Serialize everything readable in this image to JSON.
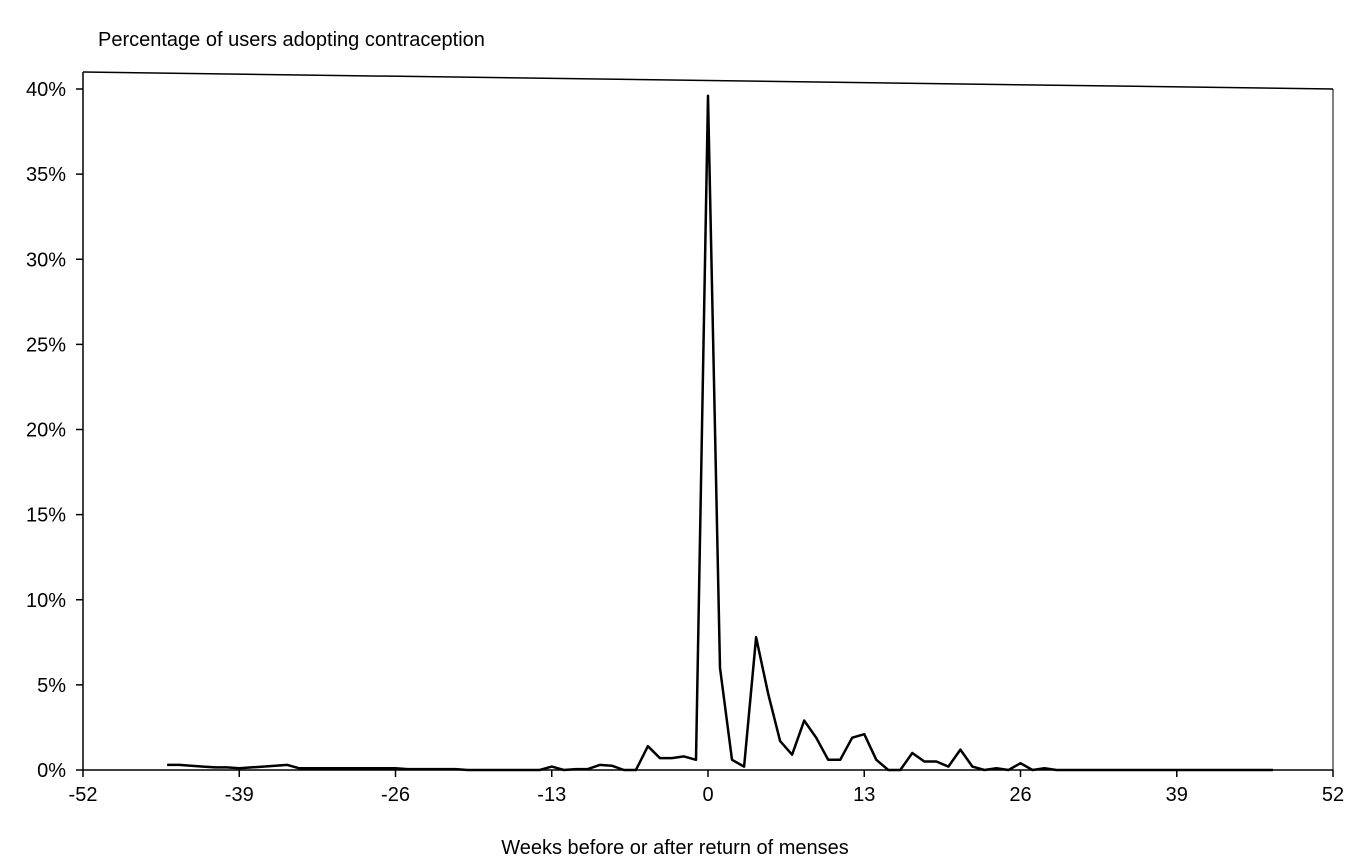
{
  "chart_data": {
    "type": "line",
    "title": "Percentage of users adopting contraception",
    "xlabel": "Weeks before or after return of menses",
    "ylabel": "",
    "xlim": [
      -52,
      52
    ],
    "ylim": [
      0,
      40
    ],
    "xticks": [
      -52,
      -39,
      -26,
      -13,
      0,
      13,
      26,
      39,
      52
    ],
    "yticks": [
      0,
      5,
      10,
      15,
      20,
      25,
      30,
      35,
      40
    ],
    "xtick_labels": [
      "-52",
      "-39",
      "-26",
      "-13",
      "0",
      "13",
      "26",
      "39",
      "52"
    ],
    "ytick_labels": [
      "0%",
      "5%",
      "10%",
      "15%",
      "20%",
      "25%",
      "30%",
      "35%",
      "40%"
    ],
    "grid": false,
    "legend": "none",
    "series": [
      {
        "x": [
          -45,
          -44,
          -43,
          -42,
          -41,
          -40,
          -39,
          -38,
          -37,
          -36,
          -35,
          -34,
          -33,
          -32,
          -31,
          -30,
          -29,
          -28,
          -27,
          -26,
          -25,
          -24,
          -23,
          -22,
          -21,
          -20,
          -19,
          -18,
          -17,
          -16,
          -15,
          -14,
          -13,
          -12,
          -11,
          -10,
          -9,
          -8,
          -7,
          -6,
          -5,
          -4,
          -3,
          -2,
          -1,
          0,
          1,
          2,
          3,
          4,
          5,
          6,
          7,
          8,
          9,
          10,
          11,
          12,
          13,
          14,
          15,
          16,
          17,
          18,
          19,
          20,
          21,
          22,
          23,
          24,
          25,
          26,
          27,
          28,
          29,
          30,
          31,
          32,
          33,
          34,
          35,
          36,
          37,
          38,
          39,
          40,
          41,
          42,
          43,
          44,
          45,
          46,
          47
        ],
        "values": [
          0.3,
          0.3,
          0.25,
          0.2,
          0.15,
          0.15,
          0.1,
          0.15,
          0.2,
          0.25,
          0.3,
          0.1,
          0.1,
          0.1,
          0.1,
          0.1,
          0.1,
          0.1,
          0.1,
          0.1,
          0.05,
          0.05,
          0.05,
          0.05,
          0.05,
          0.0,
          0.0,
          0.0,
          0.0,
          0.0,
          0.0,
          0.0,
          0.2,
          0.0,
          0.05,
          0.05,
          0.3,
          0.25,
          0.0,
          0.0,
          1.4,
          0.7,
          0.7,
          0.8,
          0.6,
          39.6,
          6.0,
          0.6,
          0.2,
          7.8,
          4.5,
          1.7,
          0.9,
          2.9,
          1.9,
          0.6,
          0.6,
          1.9,
          2.1,
          0.6,
          0.0,
          0.0,
          1.0,
          0.5,
          0.5,
          0.2,
          1.2,
          0.2,
          0.0,
          0.1,
          0.0,
          0.4,
          0.0,
          0.1,
          0.0,
          0.0,
          0.0,
          0.0,
          0.0,
          0.0,
          0.0,
          0.0,
          0.0,
          0.0,
          0.0,
          0.0,
          0.0,
          0.0,
          0.0,
          0.0,
          0.0,
          0.0,
          0.0
        ]
      }
    ]
  }
}
